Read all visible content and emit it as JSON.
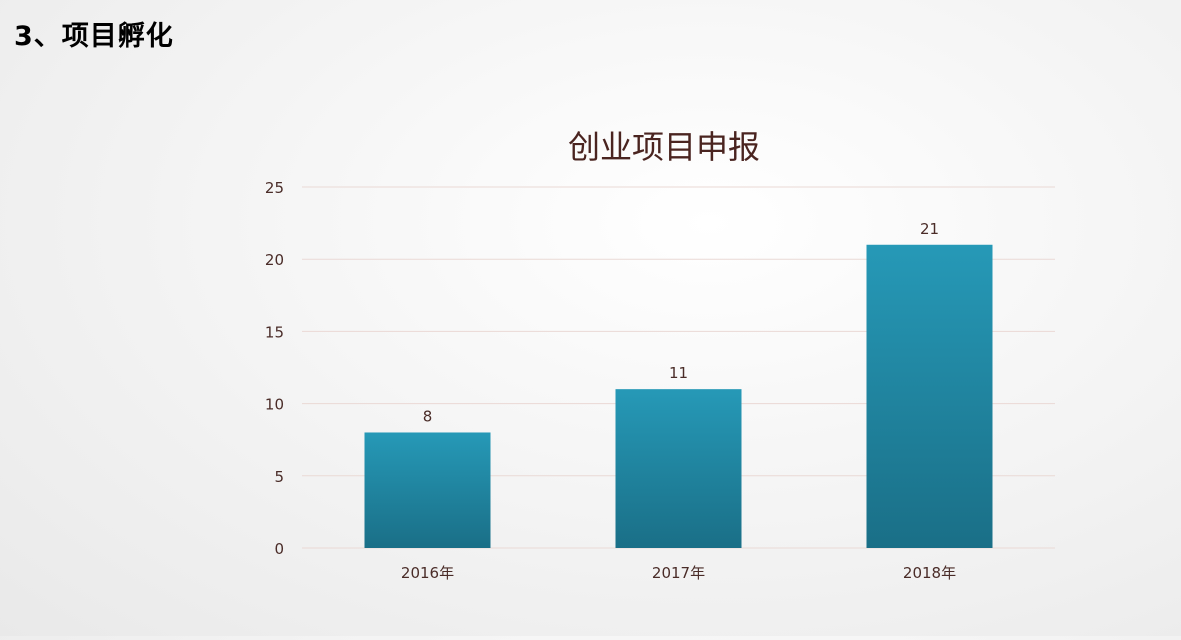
{
  "slide": {
    "title": "3、项目孵化"
  },
  "chart_data": {
    "type": "bar",
    "title": "创业项目申报",
    "categories": [
      "2016年",
      "2017年",
      "2018年"
    ],
    "values": [
      8,
      11,
      21
    ],
    "data_labels": [
      "8",
      "11",
      "21"
    ],
    "ylim": [
      0,
      25
    ],
    "yticks": [
      0,
      5,
      10,
      15,
      20,
      25
    ],
    "grid": true,
    "legend": "none",
    "colors": {
      "bar_top": "#2699b7",
      "bar_bottom": "#1a6f87",
      "gridline": "#ead9d5",
      "text": "#4a2c28",
      "title": "#4a2420"
    }
  }
}
